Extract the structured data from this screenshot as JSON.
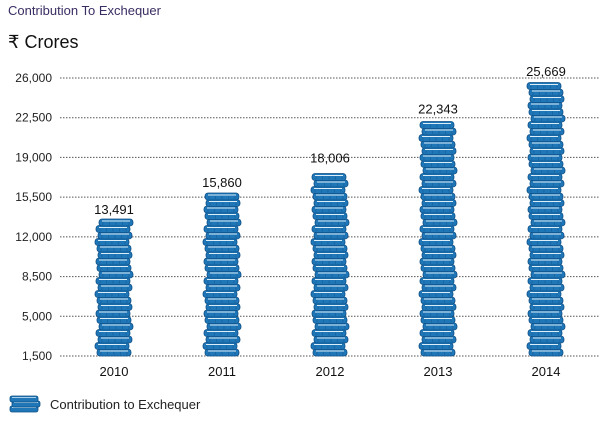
{
  "header": {
    "title": "Contribution To Exchequer",
    "unit": "₹ Crores"
  },
  "legend": {
    "label": "Contribution to Exchequer"
  },
  "colors": {
    "coin": "#1f77b8",
    "coin_dark": "#0f4f86",
    "coin_light": "#d9eef8",
    "grid": "#555555",
    "title": "#3a2d63"
  },
  "chart_data": {
    "type": "bar",
    "title": "Contribution To Exchequer",
    "ylabel": "₹ Crores",
    "xlabel": "",
    "categories": [
      "2010",
      "2011",
      "2012",
      "2013",
      "2014"
    ],
    "series": [
      {
        "name": "Contribution to Exchequer",
        "values": [
          13491,
          15860,
          18006,
          22343,
          25669
        ]
      }
    ],
    "value_labels": [
      "13,491",
      "15,860",
      "18,006",
      "22,343",
      "25,669"
    ],
    "yticks": [
      1500,
      5000,
      8500,
      12000,
      15500,
      19000,
      22500,
      26000
    ],
    "ytick_labels": [
      "1,500",
      "5,000",
      "8,500",
      "12,000",
      "15,500",
      "19,000",
      "22,500",
      "26,000"
    ],
    "ylim": [
      1500,
      26000
    ],
    "grid": true,
    "legend_position": "bottom-left",
    "mark_style": "stacked-coins"
  }
}
